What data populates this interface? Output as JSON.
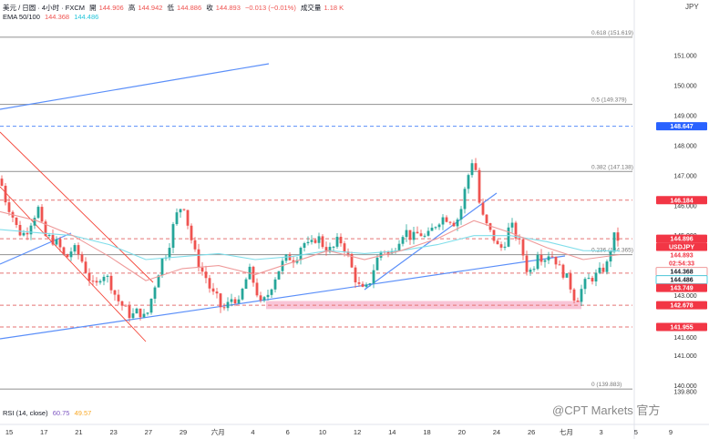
{
  "header": {
    "symbol_line": "美元 / 日圆 · 4小时 · FXCM",
    "open_label": "開",
    "open": "144.906",
    "high_label": "高",
    "high": "144.942",
    "low_label": "低",
    "low": "144.886",
    "close_label": "收",
    "close": "144.893",
    "change": "−0.013 (−0.01%)",
    "volume_label": "成交量",
    "volume": "1.18 K",
    "ema_label": "EMA 50/100",
    "ema50": "144.368",
    "ema100": "144.486",
    "rsi_label": "RSI (14, close)",
    "rsi_value": "60.75",
    "rsi_ma": "49.57"
  },
  "currency": "JPY",
  "watermark": "@CPT Markets 官方",
  "colors": {
    "up": "#26a69a",
    "down": "#ef5350",
    "ema50": "#ef9a9a",
    "ema100": "#80deea",
    "trend": "#5b8ff9",
    "level": "#e57373",
    "fib": "#9e9e9e",
    "zone": "#f8bbd0",
    "blue_tag": "#2962ff"
  },
  "chart_data": {
    "type": "candlestick",
    "title": "美元 / 日圆 · 4小时 · FXCM",
    "ylim": [
      139.25,
      152.25
    ],
    "y_ticks": [
      "151.000",
      "150.000",
      "149.000",
      "148.000",
      "147.000",
      "146.000",
      "145.000",
      "144.000",
      "143.000",
      "142.000",
      "141.600",
      "141.000",
      "140.000",
      "139.800"
    ],
    "x_ticks": [
      "15",
      "17",
      "21",
      "23",
      "27",
      "29",
      "六月",
      "4",
      "6",
      "10",
      "12",
      "14",
      "18",
      "20",
      "24",
      "26",
      "七月",
      "3",
      "5",
      "9"
    ],
    "fib_levels": [
      {
        "label": "0.618 (151.619)",
        "value": 151.619
      },
      {
        "label": "0.5 (149.379)",
        "value": 149.379
      },
      {
        "label": "0.382 (147.138)",
        "value": 147.138
      },
      {
        "label": "0.236 (144.365)",
        "value": 144.365
      },
      {
        "label": "0 (139.883)",
        "value": 139.883
      }
    ],
    "price_tags": [
      {
        "label": "148.647",
        "value": 148.647,
        "style": "blue"
      },
      {
        "label": "146.184",
        "value": 146.184,
        "style": "red"
      },
      {
        "label": "144.896",
        "value": 144.896,
        "style": "red"
      },
      {
        "label": "USDJPY",
        "value": 144.75,
        "style": "red"
      },
      {
        "label": "144.893",
        "value": 144.893,
        "style": "redtxt"
      },
      {
        "label": "02:54:33",
        "value": 144.68,
        "style": "redtxt"
      },
      {
        "label": "144.368",
        "value": 144.368,
        "style": "pink"
      },
      {
        "label": "144.486",
        "value": 144.486,
        "style": "teal"
      },
      {
        "label": "143.749",
        "value": 143.749,
        "style": "red"
      },
      {
        "label": "142.678",
        "value": 142.678,
        "style": "red"
      },
      {
        "label": "141.955",
        "value": 141.955,
        "style": "red"
      }
    ],
    "horizontal_levels": [
      {
        "value": 148.647,
        "style": "dashed-blue"
      },
      {
        "value": 146.184,
        "style": "dashed-red"
      },
      {
        "value": 144.896,
        "style": "dashed-red"
      },
      {
        "value": 143.749,
        "style": "dashed-red"
      },
      {
        "value": 142.678,
        "style": "dashed-red"
      },
      {
        "value": 141.955,
        "style": "dashed-red"
      }
    ],
    "support_zone": {
      "from": 142.55,
      "to": 142.82
    },
    "price_path": [
      [
        0,
        146.9
      ],
      [
        6,
        146.2
      ],
      [
        12,
        145.8
      ],
      [
        18,
        145.3
      ],
      [
        24,
        145.0
      ],
      [
        30,
        145.2
      ],
      [
        36,
        145.6
      ],
      [
        42,
        145.9
      ],
      [
        48,
        145.0
      ],
      [
        56,
        144.9
      ],
      [
        64,
        144.7
      ],
      [
        72,
        144.2
      ],
      [
        80,
        144.6
      ],
      [
        88,
        144.3
      ],
      [
        96,
        143.7
      ],
      [
        104,
        143.2
      ],
      [
        112,
        143.8
      ],
      [
        120,
        143.5
      ],
      [
        128,
        142.9
      ],
      [
        136,
        142.6
      ],
      [
        144,
        142.3
      ],
      [
        152,
        142.5
      ],
      [
        160,
        142.2
      ],
      [
        166,
        142.9
      ],
      [
        172,
        143.6
      ],
      [
        178,
        144.2
      ],
      [
        184,
        144.5
      ],
      [
        190,
        145.3
      ],
      [
        196,
        145.9
      ],
      [
        202,
        146.0
      ],
      [
        208,
        145.1
      ],
      [
        214,
        144.4
      ],
      [
        220,
        143.9
      ],
      [
        226,
        143.6
      ],
      [
        232,
        143.1
      ],
      [
        238,
        142.9
      ],
      [
        244,
        142.5
      ],
      [
        250,
        142.7
      ],
      [
        256,
        143.0
      ],
      [
        262,
        142.7
      ],
      [
        268,
        143.4
      ],
      [
        274,
        143.8
      ],
      [
        280,
        143.3
      ],
      [
        286,
        142.7
      ],
      [
        292,
        142.9
      ],
      [
        300,
        143.5
      ],
      [
        308,
        144.0
      ],
      [
        316,
        144.3
      ],
      [
        324,
        144.2
      ],
      [
        332,
        144.8
      ],
      [
        340,
        144.6
      ],
      [
        348,
        145.0
      ],
      [
        356,
        144.6
      ],
      [
        364,
        144.5
      ],
      [
        372,
        144.9
      ],
      [
        380,
        144.5
      ],
      [
        388,
        143.7
      ],
      [
        394,
        143.3
      ],
      [
        400,
        143.1
      ],
      [
        406,
        143.5
      ],
      [
        412,
        144.1
      ],
      [
        420,
        144.6
      ],
      [
        428,
        144.3
      ],
      [
        436,
        144.8
      ],
      [
        444,
        145.2
      ],
      [
        452,
        144.9
      ],
      [
        460,
        145.1
      ],
      [
        468,
        144.9
      ],
      [
        476,
        145.3
      ],
      [
        484,
        145.6
      ],
      [
        492,
        145.6
      ],
      [
        500,
        145.4
      ],
      [
        506,
        145.9
      ],
      [
        512,
        146.8
      ],
      [
        518,
        147.5
      ],
      [
        522,
        147.2
      ],
      [
        526,
        146.1
      ],
      [
        530,
        145.6
      ],
      [
        536,
        145.2
      ],
      [
        542,
        144.9
      ],
      [
        548,
        144.5
      ],
      [
        554,
        144.8
      ],
      [
        560,
        145.4
      ],
      [
        566,
        145.0
      ],
      [
        572,
        144.6
      ],
      [
        578,
        143.9
      ],
      [
        584,
        143.8
      ],
      [
        590,
        144.5
      ],
      [
        596,
        144.2
      ],
      [
        602,
        144.4
      ],
      [
        608,
        144.3
      ],
      [
        614,
        143.9
      ],
      [
        620,
        143.7
      ],
      [
        626,
        143.3
      ],
      [
        632,
        142.8
      ],
      [
        638,
        143.2
      ],
      [
        644,
        143.5
      ],
      [
        650,
        143.6
      ],
      [
        656,
        143.7
      ],
      [
        662,
        143.9
      ],
      [
        668,
        144.1
      ],
      [
        672,
        145.0
      ],
      [
        676,
        144.9
      ],
      [
        680,
        144.893
      ]
    ],
    "ema50_path": [
      [
        0,
        145.8
      ],
      [
        40,
        145.5
      ],
      [
        80,
        145.0
      ],
      [
        120,
        144.3
      ],
      [
        160,
        143.5
      ],
      [
        200,
        143.9
      ],
      [
        240,
        144.0
      ],
      [
        280,
        143.7
      ],
      [
        320,
        144.1
      ],
      [
        360,
        144.5
      ],
      [
        400,
        144.2
      ],
      [
        440,
        144.5
      ],
      [
        480,
        144.9
      ],
      [
        520,
        145.5
      ],
      [
        560,
        145.1
      ],
      [
        600,
        144.6
      ],
      [
        640,
        144.2
      ],
      [
        680,
        144.368
      ]
    ],
    "ema100_path": [
      [
        0,
        145.2
      ],
      [
        40,
        145.1
      ],
      [
        80,
        145.0
      ],
      [
        120,
        144.7
      ],
      [
        160,
        144.2
      ],
      [
        200,
        144.3
      ],
      [
        240,
        144.4
      ],
      [
        280,
        144.2
      ],
      [
        320,
        144.3
      ],
      [
        360,
        144.5
      ],
      [
        400,
        144.4
      ],
      [
        440,
        144.5
      ],
      [
        480,
        144.7
      ],
      [
        520,
        145.0
      ],
      [
        560,
        145.0
      ],
      [
        600,
        144.8
      ],
      [
        640,
        144.5
      ],
      [
        680,
        144.486
      ]
    ]
  }
}
